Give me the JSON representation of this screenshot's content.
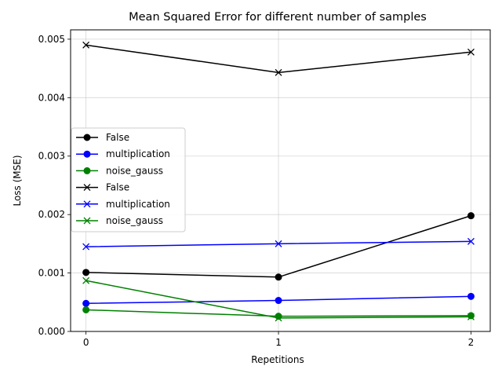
{
  "chart_data": {
    "type": "line",
    "title": "Mean Squared Error for different number of samples",
    "xlabel": "Repetitions",
    "ylabel": "Loss (MSE)",
    "x": [
      0,
      1,
      2
    ],
    "x_ticks": [
      "0",
      "1",
      "2"
    ],
    "xlim": [
      -0.08,
      2.1
    ],
    "ylim": [
      0,
      0.00516
    ],
    "y_ticks": [
      "0.000",
      "0.001",
      "0.002",
      "0.003",
      "0.004",
      "0.005"
    ],
    "y_tick_values": [
      0,
      0.001,
      0.002,
      0.003,
      0.004,
      0.005
    ],
    "grid": true,
    "legend_position": "center-left",
    "series": [
      {
        "name": "False",
        "color": "#000000",
        "marker": "circle",
        "values": [
          0.00101,
          0.00093,
          0.00198
        ]
      },
      {
        "name": "multiplication",
        "color": "#0000ff",
        "marker": "circle",
        "values": [
          0.00048,
          0.00053,
          0.0006
        ]
      },
      {
        "name": "noise_gauss",
        "color": "#008000",
        "marker": "circle",
        "values": [
          0.00037,
          0.00026,
          0.00027
        ]
      },
      {
        "name": "False",
        "color": "#000000",
        "marker": "x",
        "values": [
          0.0049,
          0.00443,
          0.00478
        ]
      },
      {
        "name": "multiplication",
        "color": "#0000ff",
        "marker": "x",
        "values": [
          0.00145,
          0.0015,
          0.00154
        ]
      },
      {
        "name": "noise_gauss",
        "color": "#008000",
        "marker": "x",
        "values": [
          0.00087,
          0.00023,
          0.00025
        ]
      }
    ]
  }
}
